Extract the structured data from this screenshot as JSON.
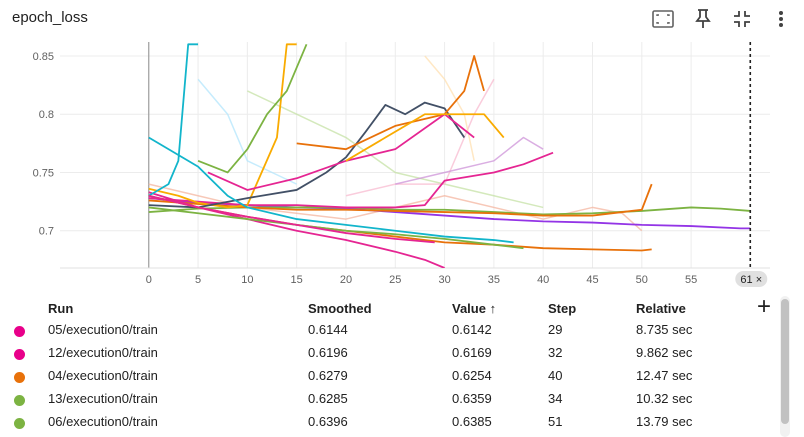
{
  "header": {
    "title": "epoch_loss",
    "buttons": [
      {
        "name": "fullscreen-icon"
      },
      {
        "name": "pin-icon"
      },
      {
        "name": "fit-domain-icon"
      },
      {
        "name": "more-vert-icon"
      }
    ]
  },
  "chart_data": {
    "type": "line",
    "title": "",
    "xlabel": "",
    "ylabel": "",
    "xlim": [
      -9,
      63
    ],
    "ylim": [
      0.668,
      0.862
    ],
    "x_ticks": [
      0,
      5,
      10,
      15,
      20,
      25,
      30,
      35,
      40,
      45,
      50,
      55
    ],
    "y_ticks": [
      0.7,
      0.75,
      0.8,
      0.85
    ],
    "grid": true,
    "cursor_step": "61 ×",
    "cursor_x": 61,
    "series": [
      {
        "color": "#9334e6",
        "points": [
          [
            0,
            0.728
          ],
          [
            5,
            0.724
          ],
          [
            10,
            0.722
          ],
          [
            15,
            0.72
          ],
          [
            20,
            0.719
          ],
          [
            25,
            0.716
          ],
          [
            30,
            0.713
          ],
          [
            35,
            0.71
          ],
          [
            40,
            0.708
          ],
          [
            45,
            0.707
          ],
          [
            50,
            0.705
          ],
          [
            55,
            0.704
          ],
          [
            60,
            0.702
          ],
          [
            61,
            0.702
          ]
        ]
      },
      {
        "color": "#7cb342",
        "points": [
          [
            0,
            0.716
          ],
          [
            5,
            0.719
          ],
          [
            10,
            0.72
          ],
          [
            15,
            0.72
          ],
          [
            20,
            0.72
          ],
          [
            25,
            0.718
          ],
          [
            30,
            0.718
          ],
          [
            35,
            0.716
          ],
          [
            40,
            0.714
          ],
          [
            45,
            0.715
          ],
          [
            50,
            0.717
          ],
          [
            55,
            0.72
          ],
          [
            58,
            0.719
          ],
          [
            61,
            0.717
          ]
        ]
      },
      {
        "color": "#e8710a",
        "points": [
          [
            0,
            0.726
          ],
          [
            5,
            0.723
          ],
          [
            10,
            0.72
          ],
          [
            15,
            0.718
          ],
          [
            20,
            0.718
          ],
          [
            25,
            0.717
          ],
          [
            30,
            0.716
          ],
          [
            35,
            0.715
          ],
          [
            40,
            0.713
          ],
          [
            45,
            0.713
          ],
          [
            50,
            0.718
          ],
          [
            51,
            0.74
          ]
        ]
      },
      {
        "color": "#e52592",
        "points": [
          [
            0,
            0.728
          ],
          [
            5,
            0.725
          ],
          [
            10,
            0.722
          ],
          [
            15,
            0.722
          ],
          [
            20,
            0.72
          ],
          [
            25,
            0.72
          ],
          [
            28,
            0.722
          ],
          [
            30,
            0.743
          ],
          [
            35,
            0.75
          ],
          [
            38,
            0.757
          ],
          [
            41,
            0.767
          ]
        ]
      },
      {
        "color": "#e52592",
        "points": [
          [
            0,
            0.733
          ],
          [
            5,
            0.72
          ],
          [
            10,
            0.71
          ],
          [
            15,
            0.7
          ],
          [
            20,
            0.692
          ],
          [
            25,
            0.682
          ],
          [
            28,
            0.675
          ],
          [
            30,
            0.668
          ]
        ]
      },
      {
        "color": "#f9ab00",
        "points": [
          [
            0,
            0.736
          ],
          [
            3,
            0.73
          ],
          [
            5,
            0.724
          ],
          [
            8,
            0.72
          ],
          [
            10,
            0.722
          ],
          [
            13,
            0.78
          ],
          [
            14,
            0.86
          ],
          [
            15,
            0.86
          ]
        ]
      },
      {
        "color": "#12b5cb",
        "points": [
          [
            0,
            0.73
          ],
          [
            2,
            0.74
          ],
          [
            3,
            0.76
          ],
          [
            4,
            0.86
          ],
          [
            5,
            0.86
          ]
        ]
      },
      {
        "color": "#425066",
        "points": [
          [
            0,
            0.722
          ],
          [
            5,
            0.72
          ],
          [
            10,
            0.728
          ],
          [
            15,
            0.735
          ],
          [
            18,
            0.75
          ],
          [
            20,
            0.763
          ],
          [
            22,
            0.785
          ],
          [
            24,
            0.808
          ],
          [
            26,
            0.8
          ],
          [
            28,
            0.81
          ],
          [
            30,
            0.805
          ],
          [
            32,
            0.78
          ]
        ]
      },
      {
        "color": "#e8710a",
        "points": [
          [
            15,
            0.775
          ],
          [
            20,
            0.77
          ],
          [
            25,
            0.79
          ],
          [
            30,
            0.8
          ],
          [
            32,
            0.82
          ],
          [
            33,
            0.85
          ],
          [
            34,
            0.82
          ]
        ]
      },
      {
        "color": "#7cb342",
        "points": [
          [
            5,
            0.76
          ],
          [
            8,
            0.75
          ],
          [
            10,
            0.77
          ],
          [
            12,
            0.8
          ],
          [
            14,
            0.82
          ],
          [
            16,
            0.86
          ]
        ]
      },
      {
        "color": "#e52592",
        "points": [
          [
            6,
            0.75
          ],
          [
            10,
            0.735
          ],
          [
            15,
            0.745
          ],
          [
            20,
            0.76
          ],
          [
            25,
            0.77
          ],
          [
            30,
            0.8
          ],
          [
            33,
            0.78
          ]
        ]
      },
      {
        "color": "#12b5cb",
        "points": [
          [
            0,
            0.78
          ],
          [
            5,
            0.755
          ],
          [
            8,
            0.73
          ],
          [
            10,
            0.72
          ],
          [
            15,
            0.71
          ],
          [
            20,
            0.705
          ],
          [
            25,
            0.7
          ],
          [
            30,
            0.695
          ],
          [
            35,
            0.692
          ],
          [
            37,
            0.69
          ]
        ]
      },
      {
        "color": "#e8710a",
        "points": [
          [
            0,
            0.73
          ],
          [
            5,
            0.72
          ],
          [
            10,
            0.712
          ],
          [
            15,
            0.705
          ],
          [
            20,
            0.7
          ],
          [
            25,
            0.695
          ],
          [
            30,
            0.69
          ],
          [
            35,
            0.688
          ],
          [
            40,
            0.685
          ],
          [
            45,
            0.684
          ],
          [
            50,
            0.683
          ],
          [
            51,
            0.684
          ]
        ]
      },
      {
        "color": "#7cb342",
        "points": [
          [
            0,
            0.72
          ],
          [
            5,
            0.715
          ],
          [
            10,
            0.71
          ],
          [
            15,
            0.705
          ],
          [
            20,
            0.7
          ],
          [
            25,
            0.697
          ],
          [
            30,
            0.693
          ],
          [
            35,
            0.688
          ],
          [
            38,
            0.685
          ]
        ]
      },
      {
        "color": "#e52592",
        "points": [
          [
            0,
            0.73
          ],
          [
            5,
            0.72
          ],
          [
            10,
            0.712
          ],
          [
            15,
            0.705
          ],
          [
            20,
            0.698
          ],
          [
            25,
            0.693
          ],
          [
            29,
            0.69
          ]
        ]
      },
      {
        "color": "#f9ab00",
        "points": [
          [
            20,
            0.76
          ],
          [
            24,
            0.78
          ],
          [
            28,
            0.8
          ],
          [
            30,
            0.8
          ],
          [
            32,
            0.8
          ],
          [
            34,
            0.8
          ],
          [
            36,
            0.78
          ]
        ]
      }
    ],
    "faint_series": [
      {
        "color": "#f4b5a0",
        "points": [
          [
            0,
            0.74
          ],
          [
            5,
            0.73
          ],
          [
            10,
            0.72
          ],
          [
            20,
            0.71
          ],
          [
            30,
            0.73
          ],
          [
            40,
            0.71
          ],
          [
            45,
            0.72
          ],
          [
            48,
            0.715
          ],
          [
            50,
            0.7
          ]
        ]
      },
      {
        "color": "#c5e1a5",
        "points": [
          [
            10,
            0.82
          ],
          [
            15,
            0.8
          ],
          [
            20,
            0.78
          ],
          [
            25,
            0.75
          ],
          [
            30,
            0.74
          ],
          [
            35,
            0.73
          ],
          [
            40,
            0.72
          ]
        ]
      },
      {
        "color": "#f8bbd0",
        "points": [
          [
            20,
            0.73
          ],
          [
            25,
            0.74
          ],
          [
            30,
            0.74
          ],
          [
            33,
            0.8
          ],
          [
            35,
            0.83
          ]
        ]
      },
      {
        "color": "#b3e5fc",
        "points": [
          [
            5,
            0.83
          ],
          [
            8,
            0.8
          ],
          [
            10,
            0.76
          ],
          [
            15,
            0.74
          ]
        ]
      },
      {
        "color": "#ce93d8",
        "points": [
          [
            25,
            0.74
          ],
          [
            30,
            0.75
          ],
          [
            35,
            0.76
          ],
          [
            38,
            0.78
          ],
          [
            40,
            0.77
          ]
        ]
      },
      {
        "color": "#ffe0b2",
        "points": [
          [
            28,
            0.85
          ],
          [
            30,
            0.83
          ],
          [
            32,
            0.8
          ],
          [
            33,
            0.76
          ]
        ]
      }
    ]
  },
  "table": {
    "columns": [
      "Run",
      "Smoothed",
      "Value ↑",
      "Step",
      "Relative"
    ],
    "rows": [
      {
        "color": "#e8008a",
        "run": "05/execution0/train",
        "smoothed": "0.6144",
        "value": "0.6142",
        "step": "29",
        "relative": "8.735 sec"
      },
      {
        "color": "#e8008a",
        "run": "12/execution0/train",
        "smoothed": "0.6196",
        "value": "0.6169",
        "step": "32",
        "relative": "9.862 sec"
      },
      {
        "color": "#e8710a",
        "run": "04/execution0/train",
        "smoothed": "0.6279",
        "value": "0.6254",
        "step": "40",
        "relative": "12.47 sec"
      },
      {
        "color": "#7cb342",
        "run": "13/execution0/train",
        "smoothed": "0.6285",
        "value": "0.6359",
        "step": "34",
        "relative": "10.32 sec"
      },
      {
        "color": "#7cb342",
        "run": "06/execution0/train",
        "smoothed": "0.6396",
        "value": "0.6385",
        "step": "51",
        "relative": "13.79 sec"
      }
    ],
    "add_column_label": "+"
  }
}
